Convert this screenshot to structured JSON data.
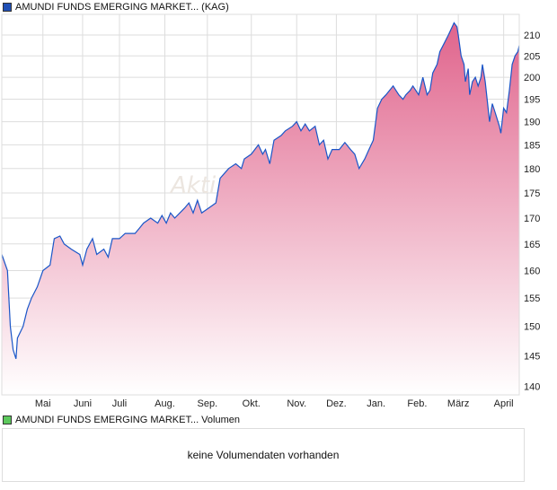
{
  "legend_main": {
    "label": "AMUNDI FUNDS EMERGING MARKET... (KAG)",
    "color": "#1f4fb5"
  },
  "legend_volume": {
    "label": "AMUNDI FUNDS EMERGING MARKET... Volumen",
    "color": "#5cc85c"
  },
  "volume_message": "keine Volumendaten vorhanden",
  "watermark": "Akti",
  "chart_data": {
    "type": "area",
    "title": "AMUNDI FUNDS EMERGING MARKET... (KAG)",
    "xlabel": "",
    "ylabel": "",
    "y_scale": "log",
    "ylim": [
      138.5,
      216
    ],
    "x_unit": "days since start",
    "xlim": [
      0,
      365
    ],
    "y_ticks": [
      140,
      145,
      150,
      155,
      160,
      165,
      170,
      175,
      180,
      185,
      190,
      195,
      200,
      205,
      210
    ],
    "x_ticks": [
      {
        "day": 29,
        "label": "Mai"
      },
      {
        "day": 57,
        "label": "Juni"
      },
      {
        "day": 83,
        "label": "Juli"
      },
      {
        "day": 115,
        "label": "Aug."
      },
      {
        "day": 145,
        "label": "Sep."
      },
      {
        "day": 176,
        "label": "Okt."
      },
      {
        "day": 208,
        "label": "Nov."
      },
      {
        "day": 236,
        "label": "Dez."
      },
      {
        "day": 264,
        "label": "Jan."
      },
      {
        "day": 293,
        "label": "Feb."
      },
      {
        "day": 322,
        "label": "März"
      },
      {
        "day": 354,
        "label": "April"
      }
    ],
    "grid": true,
    "line_color": "#1a56c8",
    "fill_top": "#e0648c",
    "fill_bottom": "#ffffff",
    "points": [
      [
        0,
        163
      ],
      [
        4,
        160
      ],
      [
        6,
        150
      ],
      [
        8,
        146
      ],
      [
        10,
        144.5
      ],
      [
        11,
        148
      ],
      [
        15,
        150
      ],
      [
        18,
        153
      ],
      [
        21,
        155
      ],
      [
        25,
        157
      ],
      [
        29,
        160
      ],
      [
        34,
        161
      ],
      [
        37,
        166
      ],
      [
        41,
        166.5
      ],
      [
        44,
        165
      ],
      [
        49,
        164
      ],
      [
        55,
        163
      ],
      [
        57,
        161
      ],
      [
        60,
        164
      ],
      [
        64,
        166
      ],
      [
        67,
        163
      ],
      [
        72,
        164
      ],
      [
        75,
        162.5
      ],
      [
        78,
        166
      ],
      [
        83,
        166
      ],
      [
        87,
        167
      ],
      [
        94,
        167
      ],
      [
        97,
        168
      ],
      [
        100,
        169
      ],
      [
        105,
        170
      ],
      [
        110,
        169
      ],
      [
        113,
        170.5
      ],
      [
        116,
        169
      ],
      [
        119,
        171
      ],
      [
        122,
        170
      ],
      [
        129,
        172
      ],
      [
        132,
        173
      ],
      [
        135,
        171
      ],
      [
        138,
        173.5
      ],
      [
        141,
        171
      ],
      [
        146,
        172
      ],
      [
        151,
        173
      ],
      [
        154,
        178
      ],
      [
        157,
        179
      ],
      [
        160,
        180
      ],
      [
        165,
        181
      ],
      [
        169,
        180
      ],
      [
        171,
        182
      ],
      [
        176,
        183
      ],
      [
        181,
        185
      ],
      [
        184,
        183
      ],
      [
        186,
        184
      ],
      [
        189,
        181
      ],
      [
        192,
        186
      ],
      [
        197,
        187
      ],
      [
        200,
        188
      ],
      [
        205,
        189
      ],
      [
        208,
        190
      ],
      [
        211,
        188
      ],
      [
        214,
        189.5
      ],
      [
        217,
        188
      ],
      [
        221,
        189
      ],
      [
        224,
        185
      ],
      [
        227,
        186
      ],
      [
        230,
        182
      ],
      [
        233,
        184
      ],
      [
        238,
        184
      ],
      [
        242,
        185.5
      ],
      [
        246,
        184
      ],
      [
        249,
        183
      ],
      [
        252,
        180
      ],
      [
        256,
        182
      ],
      [
        259,
        184
      ],
      [
        262,
        186
      ],
      [
        265,
        193
      ],
      [
        268,
        195
      ],
      [
        271,
        196
      ],
      [
        276,
        198
      ],
      [
        278,
        197
      ],
      [
        280,
        196
      ],
      [
        283,
        195
      ],
      [
        285,
        196
      ],
      [
        288,
        197
      ],
      [
        290,
        198
      ],
      [
        294,
        196
      ],
      [
        297,
        200
      ],
      [
        300,
        196
      ],
      [
        302,
        197
      ],
      [
        304,
        201
      ],
      [
        307,
        203
      ],
      [
        309,
        206
      ],
      [
        312,
        208
      ],
      [
        315,
        210
      ],
      [
        319,
        213
      ],
      [
        321,
        212
      ],
      [
        322,
        210
      ],
      [
        324,
        205
      ],
      [
        326,
        203
      ],
      [
        327,
        199
      ],
      [
        329,
        202
      ],
      [
        330,
        196
      ],
      [
        332,
        199
      ],
      [
        334,
        200
      ],
      [
        336,
        198
      ],
      [
        338,
        200
      ],
      [
        339,
        203
      ],
      [
        341,
        199
      ],
      [
        343,
        193
      ],
      [
        344,
        190
      ],
      [
        346,
        194
      ],
      [
        348,
        192
      ],
      [
        351,
        189
      ],
      [
        352,
        187.5
      ],
      [
        354,
        193
      ],
      [
        356,
        192
      ],
      [
        358,
        197
      ],
      [
        360,
        203
      ],
      [
        362,
        205
      ],
      [
        364,
        206
      ],
      [
        365,
        207.5
      ]
    ]
  }
}
